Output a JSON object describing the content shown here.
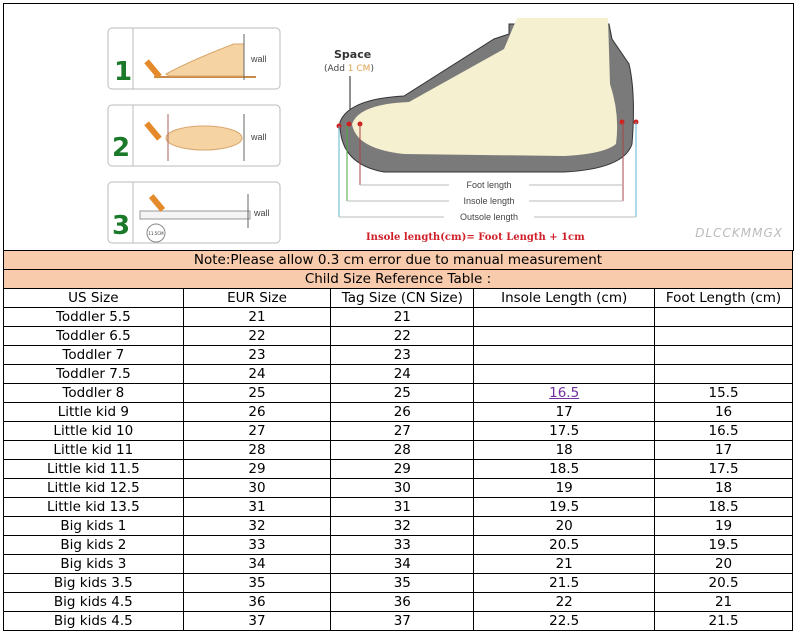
{
  "illustration": {
    "steps": [
      "1",
      "2",
      "3"
    ],
    "wall_label": "wall",
    "ruler_badge": "11.5CM",
    "space_label": "Space",
    "space_note_prefix": "(Add ",
    "space_note_value": "1 CM",
    "space_note_suffix": ")",
    "foot_length": "Foot length",
    "insole_length": "Insole length",
    "outsole_length": "Outsole length",
    "formula": "Insole length(cm)= Foot Length + 1cm"
  },
  "note": "Note:Please allow 0.3 cm error due to manual measurement",
  "table_title": "Child Size Reference Table :",
  "columns": [
    "US Size",
    "EUR Size",
    "Tag Size (CN Size)",
    "Insole Length (cm)",
    "Foot Length (cm)"
  ],
  "rows": [
    [
      "Toddler 5.5",
      "21",
      "21",
      "",
      ""
    ],
    [
      "Toddler 6.5",
      "22",
      "22",
      "",
      ""
    ],
    [
      "Toddler 7",
      "23",
      "23",
      "",
      ""
    ],
    [
      "Toddler 7.5",
      "24",
      "24",
      "",
      ""
    ],
    [
      "Toddler 8",
      "25",
      "25",
      "16.5",
      "15.5"
    ],
    [
      "Little kid 9",
      "26",
      "26",
      "17",
      "16"
    ],
    [
      "Little kid 10",
      "27",
      "27",
      "17.5",
      "16.5"
    ],
    [
      "Little kid 11",
      "28",
      "28",
      "18",
      "17"
    ],
    [
      "Little kid 11.5",
      "29",
      "29",
      "18.5",
      "17.5"
    ],
    [
      "Little kid 12.5",
      "30",
      "30",
      "19",
      "18"
    ],
    [
      "Little kid 13.5",
      "31",
      "31",
      "19.5",
      "18.5"
    ],
    [
      "Big kids 1",
      "32",
      "32",
      "20",
      "19"
    ],
    [
      "Big kids 2",
      "33",
      "33",
      "20.5",
      "19.5"
    ],
    [
      "Big kids 3",
      "34",
      "34",
      "21",
      "20"
    ],
    [
      "Big kids 3.5",
      "35",
      "35",
      "21.5",
      "20.5"
    ],
    [
      "Big kids 4.5",
      "36",
      "36",
      "22",
      "21"
    ],
    [
      "Big kids 4.5",
      "37",
      "37",
      "22.5",
      "21.5"
    ]
  ],
  "watermark": "DLCCKMMGX",
  "colors": {
    "band": "#f8cbad",
    "link": "#7030a0",
    "formula": "#d0202a"
  }
}
